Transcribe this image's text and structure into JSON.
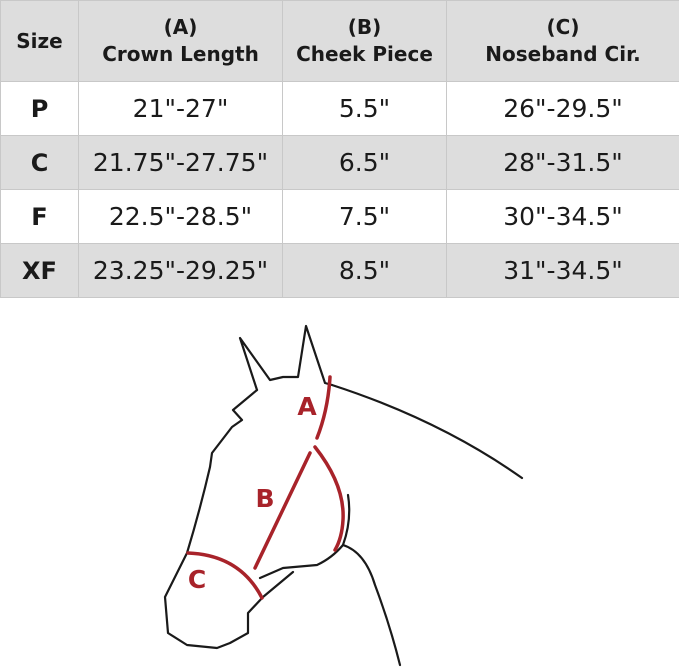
{
  "table": {
    "headers": [
      {
        "line1": "",
        "line2": "Size"
      },
      {
        "line1": "(A)",
        "line2": "Crown Length"
      },
      {
        "line1": "(B)",
        "line2": "Cheek Piece"
      },
      {
        "line1": "(C)",
        "line2": "Noseband Cir."
      }
    ],
    "rows": [
      {
        "size": "P",
        "crown": "21\"-27\"",
        "cheek": "5.5\"",
        "noseband": "26\"-29.5\""
      },
      {
        "size": "C",
        "crown": "21.75\"-27.75\"",
        "cheek": "6.5\"",
        "noseband": "28\"-31.5\""
      },
      {
        "size": "F",
        "crown": "22.5\"-28.5\"",
        "cheek": "7.5\"",
        "noseband": "30\"-34.5\""
      },
      {
        "size": "XF",
        "crown": "23.25\"-29.25\"",
        "cheek": "8.5\"",
        "noseband": "31\"-34.5\""
      }
    ]
  },
  "diagram": {
    "labels": {
      "a": "A",
      "b": "B",
      "c": "C"
    },
    "colors": {
      "measure": "#a8232a",
      "outline": "#1a1a1a",
      "header_bg": "#dddddd"
    }
  }
}
